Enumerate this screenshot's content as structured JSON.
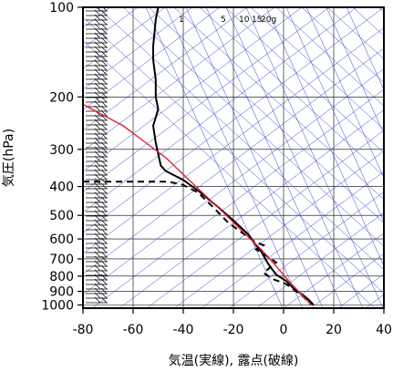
{
  "chart_data": {
    "type": "line",
    "title": "",
    "xlabel": "気温(実線), 露点(破線)",
    "ylabel": "気圧(hPa)",
    "x_ticks": [
      -80,
      -60,
      -40,
      -20,
      0,
      20,
      40
    ],
    "y_ticks": [
      100,
      200,
      300,
      400,
      500,
      600,
      700,
      800,
      900,
      1000
    ],
    "xlim": [
      -80,
      40
    ],
    "ylim": [
      1050,
      100
    ],
    "y_scale": "log",
    "mixing_ratio_labels": [
      "1",
      "5",
      "10",
      "15",
      "20g"
    ],
    "series": [
      {
        "style": "solid",
        "color": "#000000",
        "points": [
          [
            -50,
            100
          ],
          [
            -51,
            110
          ],
          [
            -52,
            135
          ],
          [
            -52,
            150
          ],
          [
            -51,
            175
          ],
          [
            -51,
            200
          ],
          [
            -50,
            220
          ],
          [
            -52,
            250
          ],
          [
            -51,
            285
          ],
          [
            -49,
            340
          ],
          [
            -47,
            355
          ],
          [
            -40,
            380
          ],
          [
            -33,
            420
          ],
          [
            -26,
            470
          ],
          [
            -20,
            520
          ],
          [
            -14,
            580
          ],
          [
            -11,
            630
          ],
          [
            -9,
            660
          ],
          [
            -6,
            730
          ],
          [
            -3,
            790
          ],
          [
            1,
            830
          ],
          [
            4,
            880
          ],
          [
            8,
            930
          ],
          [
            10,
            960
          ],
          [
            12,
            1000
          ]
        ]
      },
      {
        "style": "dashed",
        "color": "#000000",
        "points": [
          [
            -80,
            385
          ],
          [
            -46,
            385
          ],
          [
            -40,
            395
          ],
          [
            -34,
            420
          ],
          [
            -28,
            470
          ],
          [
            -22,
            530
          ],
          [
            -18,
            560
          ],
          [
            -12,
            610
          ],
          [
            -8,
            630
          ],
          [
            -11,
            650
          ],
          [
            -5,
            700
          ],
          [
            -3,
            720
          ],
          [
            -8,
            780
          ],
          [
            -4,
            820
          ],
          [
            1,
            850
          ],
          [
            5,
            900
          ],
          [
            8,
            940
          ],
          [
            11,
            1000
          ]
        ]
      },
      {
        "style": "solid",
        "color": "#e0203c",
        "points": [
          [
            -80,
            212
          ],
          [
            -64,
            250
          ],
          [
            -55,
            285
          ],
          [
            -47,
            320
          ],
          [
            -35,
            400
          ],
          [
            -25,
            480
          ],
          [
            -16,
            570
          ],
          [
            -9,
            650
          ],
          [
            -3,
            740
          ],
          [
            2,
            830
          ],
          [
            6,
            900
          ],
          [
            11,
            1000
          ]
        ]
      }
    ],
    "wind_barbs": "left side, at many pressure levels"
  }
}
